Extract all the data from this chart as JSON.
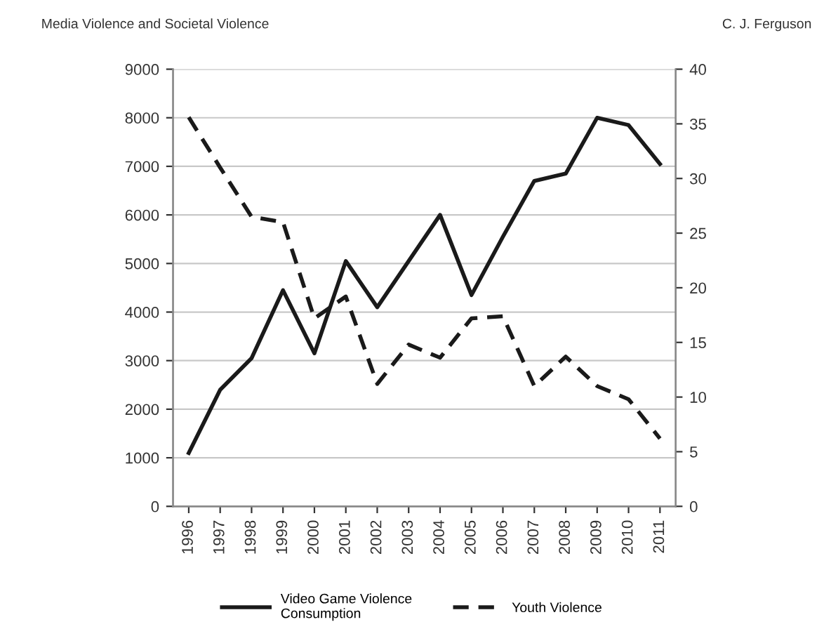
{
  "chart_data": {
    "type": "line",
    "title": "Media Violence and Societal Violence",
    "annotations": [
      "C. J. Ferguson"
    ],
    "categories": [
      "1996",
      "1997",
      "1998",
      "1999",
      "2000",
      "2001",
      "2002",
      "2003",
      "2004",
      "2005",
      "2006",
      "2007",
      "2008",
      "2009",
      "2010",
      "2011"
    ],
    "series": [
      {
        "name": "Video Game Violence\nConsumption",
        "color": "#1a1a1a",
        "line_style": "solid",
        "values": [
          1100,
          2400,
          3050,
          4450,
          3150,
          5050,
          4100,
          5050,
          6000,
          4350,
          5550,
          6700,
          6850,
          8000,
          7850,
          7050
        ]
      },
      {
        "name": "Youth Violence",
        "color": "#1a1a1a",
        "line_style": "dashed",
        "axis": "y2",
        "values": [
          35.6,
          31,
          26.5,
          26,
          17.2,
          19.2,
          11.2,
          14.8,
          13.6,
          17.2,
          17.4,
          11,
          13.7,
          11,
          9.8,
          6.2
        ]
      }
    ],
    "ylim": [
      0,
      9000
    ],
    "yticks": [
      0,
      1000,
      2000,
      3000,
      4000,
      5000,
      6000,
      7000,
      8000,
      9000
    ],
    "y2lim": [
      0,
      40
    ],
    "y2ticks": [
      0,
      5,
      10,
      15,
      20,
      25,
      30,
      35,
      40
    ],
    "grid": "y",
    "legend": "bottom",
    "marker": "none"
  }
}
